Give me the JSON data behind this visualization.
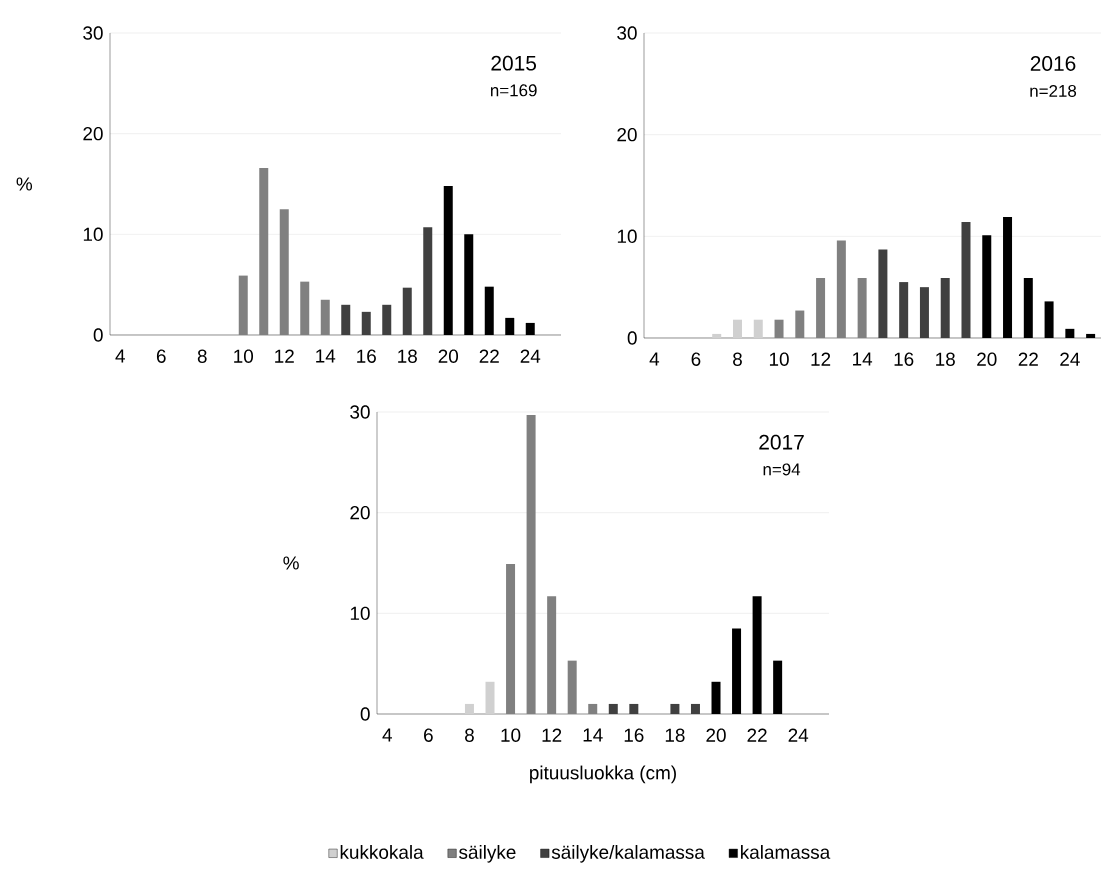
{
  "chart_data": [
    {
      "type": "bar",
      "ylabel": "%",
      "annotations": [
        "2015",
        "n=169"
      ],
      "categories": [
        "4",
        null,
        "6",
        null,
        "8",
        null,
        "10",
        null,
        "12",
        null,
        "14",
        null,
        "16",
        null,
        "18",
        null,
        "20",
        null,
        "22",
        null,
        "24",
        null
      ],
      "series": [
        {
          "color": "#d0d0d0",
          "values": [
            null,
            null,
            null,
            null,
            null,
            null,
            null,
            null,
            null,
            null,
            null,
            null,
            null,
            null,
            null,
            null,
            null,
            null,
            null,
            null,
            null,
            null
          ]
        },
        {
          "color": "#808080",
          "values": [
            null,
            null,
            null,
            null,
            null,
            null,
            5.9,
            16.6,
            12.5,
            5.3,
            3.5,
            null,
            null,
            null,
            null,
            null,
            null,
            null,
            null,
            null,
            null,
            null
          ]
        },
        {
          "color": "#404040",
          "values": [
            null,
            null,
            null,
            null,
            null,
            null,
            null,
            null,
            null,
            null,
            null,
            3.0,
            2.3,
            3.0,
            4.7,
            10.7,
            null,
            null,
            null,
            null,
            null,
            null
          ]
        },
        {
          "color": "#000000",
          "values": [
            null,
            null,
            null,
            null,
            null,
            null,
            null,
            null,
            null,
            null,
            null,
            null,
            null,
            null,
            null,
            null,
            14.8,
            10.0,
            4.8,
            1.7,
            1.2,
            null
          ]
        }
      ],
      "ylim": [
        0,
        30
      ],
      "yticks": [
        0,
        10,
        20,
        30
      ],
      "grid": "y"
    },
    {
      "type": "bar",
      "annotations": [
        "2016",
        "n=218"
      ],
      "categories": [
        "4",
        null,
        "6",
        null,
        "8",
        null,
        "10",
        null,
        "12",
        null,
        "14",
        null,
        "16",
        null,
        "18",
        null,
        "20",
        null,
        "22",
        null,
        "24",
        null
      ],
      "series": [
        {
          "color": "#d0d0d0",
          "values": [
            null,
            null,
            null,
            0.4,
            1.8,
            1.8,
            null,
            null,
            null,
            null,
            null,
            null,
            null,
            null,
            null,
            null,
            null,
            null,
            null,
            null,
            null,
            null
          ]
        },
        {
          "color": "#808080",
          "values": [
            null,
            null,
            null,
            null,
            null,
            null,
            1.8,
            2.7,
            5.9,
            9.6,
            5.9,
            null,
            null,
            null,
            null,
            null,
            null,
            null,
            null,
            null,
            null,
            null
          ]
        },
        {
          "color": "#404040",
          "values": [
            null,
            null,
            null,
            null,
            null,
            null,
            null,
            null,
            null,
            null,
            null,
            8.7,
            5.5,
            5.0,
            5.9,
            11.4,
            null,
            null,
            null,
            null,
            null,
            null
          ]
        },
        {
          "color": "#000000",
          "values": [
            null,
            null,
            null,
            null,
            null,
            null,
            null,
            null,
            null,
            null,
            null,
            null,
            null,
            null,
            null,
            null,
            10.1,
            11.9,
            5.9,
            3.6,
            0.9,
            0.4
          ]
        }
      ],
      "ylim": [
        0,
        30
      ],
      "yticks": [
        0,
        10,
        20,
        30
      ],
      "grid": "y"
    },
    {
      "type": "bar",
      "ylabel": "%",
      "xlabel": "pituusluokka (cm)",
      "annotations": [
        "2017",
        "n=94"
      ],
      "categories": [
        "4",
        null,
        "6",
        null,
        "8",
        null,
        "10",
        null,
        "12",
        null,
        "14",
        null,
        "16",
        null,
        "18",
        null,
        "20",
        null,
        "22",
        null,
        "24",
        null
      ],
      "series": [
        {
          "name": "kukkokala",
          "color": "#d0d0d0",
          "values": [
            null,
            null,
            null,
            null,
            1.0,
            3.2,
            null,
            null,
            null,
            null,
            null,
            null,
            null,
            null,
            null,
            null,
            null,
            null,
            null,
            null,
            null,
            null
          ]
        },
        {
          "name": "säilyke",
          "color": "#808080",
          "values": [
            null,
            null,
            null,
            null,
            null,
            null,
            14.9,
            29.7,
            11.7,
            5.3,
            1.0,
            null,
            null,
            null,
            null,
            null,
            null,
            null,
            null,
            null,
            null,
            null
          ]
        },
        {
          "name": "säilyke/kalamassa",
          "color": "#404040",
          "values": [
            null,
            null,
            null,
            null,
            null,
            null,
            null,
            null,
            null,
            null,
            null,
            1.0,
            1.0,
            null,
            1.0,
            1.0,
            null,
            null,
            null,
            null,
            null,
            null
          ]
        },
        {
          "name": "kalamassa",
          "color": "#000000",
          "values": [
            null,
            null,
            null,
            null,
            null,
            null,
            null,
            null,
            null,
            null,
            null,
            null,
            null,
            null,
            null,
            null,
            3.2,
            8.5,
            11.7,
            5.3,
            null,
            null
          ]
        }
      ],
      "ylim": [
        0,
        30
      ],
      "yticks": [
        0,
        10,
        20,
        30
      ],
      "grid": "y",
      "legend": "bottom"
    }
  ]
}
